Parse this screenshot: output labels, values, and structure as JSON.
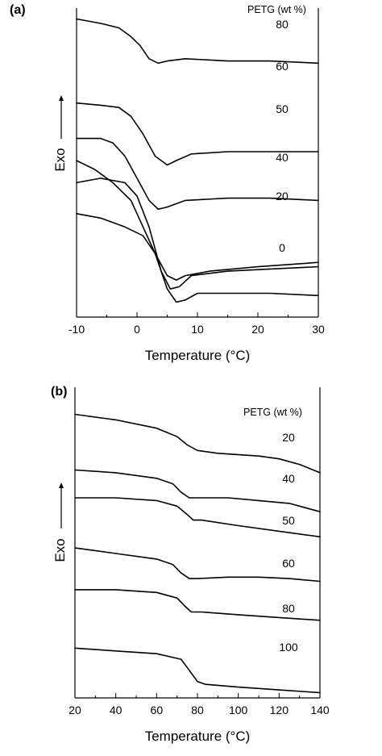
{
  "chart_data": [
    {
      "type": "line",
      "panel_label": "(a)",
      "xlabel": "Temperature (°C)",
      "ylabel": "Exo",
      "xlim": [
        -10,
        30
      ],
      "xticks": [
        -10,
        0,
        10,
        20,
        30
      ],
      "y_ticks_shown": false,
      "legend_title": "PETG (wt %)",
      "series": [
        {
          "name": "80",
          "x": [
            -10,
            -6,
            -3,
            -1,
            0.5,
            2,
            3.5,
            5,
            8,
            15,
            22,
            30
          ],
          "y": [
            0.57,
            0.56,
            0.55,
            0.53,
            0.51,
            0.48,
            0.47,
            0.475,
            0.48,
            0.475,
            0.475,
            0.47
          ]
        },
        {
          "name": "60",
          "x": [
            -10,
            -6,
            -3,
            -1,
            1,
            3,
            5,
            6.5,
            9,
            15,
            22,
            30
          ],
          "y": [
            0.38,
            0.375,
            0.37,
            0.35,
            0.31,
            0.26,
            0.24,
            0.25,
            0.265,
            0.27,
            0.27,
            0.27
          ]
        },
        {
          "name": "50",
          "x": [
            -10,
            -7,
            -4,
            -1,
            1,
            3,
            5,
            6.5,
            8,
            12,
            20,
            30
          ],
          "y": [
            0.25,
            0.23,
            0.2,
            0.16,
            0.1,
            0.04,
            -0.01,
            -0.02,
            -0.01,
            0.0,
            0.01,
            0.02
          ]
        },
        {
          "name": "40",
          "x": [
            -10,
            -6,
            -4,
            -2,
            0,
            2,
            3.5,
            5,
            8,
            15,
            22,
            30
          ],
          "y": [
            0.3,
            0.3,
            0.29,
            0.26,
            0.21,
            0.16,
            0.14,
            0.145,
            0.16,
            0.165,
            0.165,
            0.16
          ]
        },
        {
          "name": "20",
          "x": [
            -10,
            -6,
            -2,
            0,
            2,
            4,
            5.5,
            7,
            9,
            15,
            22,
            30
          ],
          "y": [
            0.2,
            0.21,
            0.2,
            0.17,
            0.1,
            0.0,
            -0.04,
            -0.035,
            -0.01,
            0.0,
            0.005,
            0.01
          ]
        },
        {
          "name": "0",
          "x": [
            -10,
            -6,
            -2,
            1,
            3,
            5,
            6.5,
            8,
            10,
            15,
            22,
            30
          ],
          "y": [
            0.13,
            0.12,
            0.1,
            0.08,
            0.04,
            -0.04,
            -0.07,
            -0.065,
            -0.05,
            -0.05,
            -0.05,
            -0.055
          ]
        }
      ]
    },
    {
      "type": "line",
      "panel_label": "(b)",
      "xlabel": "Temperature (°C)",
      "ylabel": "Exo",
      "xlim": [
        20,
        140
      ],
      "xticks": [
        20,
        40,
        60,
        80,
        100,
        120,
        140
      ],
      "y_ticks_shown": false,
      "legend_title": "PETG (wt %)",
      "series": [
        {
          "name": "20",
          "x": [
            20,
            40,
            60,
            70,
            75,
            80,
            90,
            110,
            120,
            130,
            140
          ],
          "y": [
            0.7,
            0.68,
            0.65,
            0.62,
            0.59,
            0.57,
            0.56,
            0.55,
            0.54,
            0.52,
            0.49
          ]
        },
        {
          "name": "40",
          "x": [
            20,
            40,
            60,
            68,
            72,
            76,
            80,
            95,
            110,
            125,
            140
          ],
          "y": [
            0.5,
            0.49,
            0.47,
            0.45,
            0.42,
            0.4,
            0.4,
            0.4,
            0.39,
            0.38,
            0.35
          ]
        },
        {
          "name": "50",
          "x": [
            20,
            40,
            60,
            70,
            75,
            78,
            82,
            100,
            120,
            140
          ],
          "y": [
            0.4,
            0.4,
            0.39,
            0.37,
            0.34,
            0.32,
            0.32,
            0.3,
            0.28,
            0.26
          ]
        },
        {
          "name": "60",
          "x": [
            20,
            40,
            60,
            68,
            72,
            76,
            80,
            95,
            110,
            125,
            140
          ],
          "y": [
            0.22,
            0.2,
            0.18,
            0.16,
            0.13,
            0.11,
            0.11,
            0.115,
            0.115,
            0.11,
            0.1
          ]
        },
        {
          "name": "80",
          "x": [
            20,
            40,
            60,
            70,
            74,
            77,
            82,
            100,
            120,
            140
          ],
          "y": [
            0.07,
            0.07,
            0.06,
            0.04,
            0.01,
            -0.01,
            -0.01,
            -0.02,
            -0.03,
            -0.04
          ]
        },
        {
          "name": "100",
          "x": [
            20,
            40,
            60,
            72,
            76,
            80,
            84,
            100,
            120,
            140
          ],
          "y": [
            -0.14,
            -0.15,
            -0.16,
            -0.18,
            -0.22,
            -0.26,
            -0.27,
            -0.28,
            -0.29,
            -0.3
          ]
        }
      ]
    }
  ]
}
